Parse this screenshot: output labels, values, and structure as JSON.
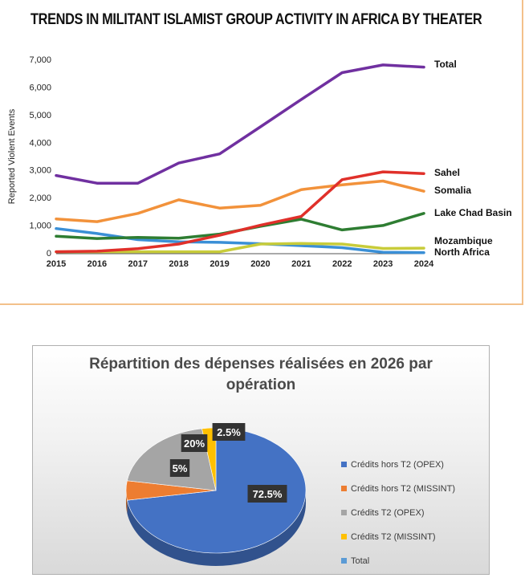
{
  "top_chart": {
    "title": "TRENDS IN MILITANT ISLAMIST GROUP ACTIVITY IN AFRICA BY THEATER"
  },
  "bottom_chart": {
    "title_line1": "Répartition des dépenses réalisées en 2026 par",
    "title_line2": "opération"
  },
  "chart_data": [
    {
      "type": "line",
      "title": "TRENDS IN MILITANT ISLAMIST GROUP ACTIVITY IN AFRICA BY THEATER",
      "xlabel": "",
      "ylabel": "Reported Violent Events",
      "x": [
        "2015",
        "2016",
        "2017",
        "2018",
        "2019",
        "2020",
        "2021",
        "2022",
        "2023",
        "2024"
      ],
      "ylim": [
        0,
        7000
      ],
      "yticks": [
        0,
        1000,
        2000,
        3000,
        4000,
        5000,
        6000,
        7000
      ],
      "ytick_labels": [
        "0",
        "1,000",
        "2,000",
        "3,000",
        "4,000",
        "5,000",
        "6,000",
        "7,000"
      ],
      "grid": false,
      "series": [
        {
          "name": "Total",
          "color": "#7030a0",
          "values": [
            2800,
            2520,
            2520,
            3250,
            3580,
            4560,
            5550,
            6520,
            6800,
            6720
          ]
        },
        {
          "name": "Sahel",
          "color": "#e0302a",
          "values": [
            40,
            60,
            150,
            320,
            640,
            1000,
            1320,
            2650,
            2930,
            2870
          ]
        },
        {
          "name": "Somalia",
          "color": "#f2923b",
          "values": [
            1230,
            1130,
            1430,
            1920,
            1620,
            1720,
            2290,
            2460,
            2600,
            2230
          ]
        },
        {
          "name": "Lake Chad Basin",
          "color": "#2e7d32",
          "values": [
            600,
            520,
            560,
            530,
            680,
            960,
            1220,
            830,
            990,
            1430
          ]
        },
        {
          "name": "Mozambique",
          "color": "#c8cc3a",
          "values": [
            40,
            40,
            40,
            40,
            40,
            320,
            340,
            320,
            160,
            170
          ]
        },
        {
          "name": "North Africa",
          "color": "#3a8fd6",
          "values": [
            880,
            700,
            480,
            400,
            380,
            330,
            260,
            190,
            20,
            10
          ]
        }
      ]
    },
    {
      "type": "pie",
      "title": "Répartition des dépenses réalisées en 2026 par opération",
      "legend_position": "right",
      "slices": [
        {
          "name": "Crédits hors T2 (OPEX)",
          "value": 72.5,
          "label": "72.5%",
          "color": "#4472c4"
        },
        {
          "name": "Crédits hors T2 (MISSINT)",
          "value": 5,
          "label": "5%",
          "color": "#ed7d31"
        },
        {
          "name": "Crédits T2 (OPEX)",
          "value": 20,
          "label": "20%",
          "color": "#a5a5a5"
        },
        {
          "name": "Crédits T2 (MISSINT)",
          "value": 2.5,
          "label": "2.5%",
          "color": "#ffc000"
        },
        {
          "name": "Total",
          "value": 0,
          "label": "",
          "color": "#5b9bd5"
        }
      ]
    }
  ]
}
